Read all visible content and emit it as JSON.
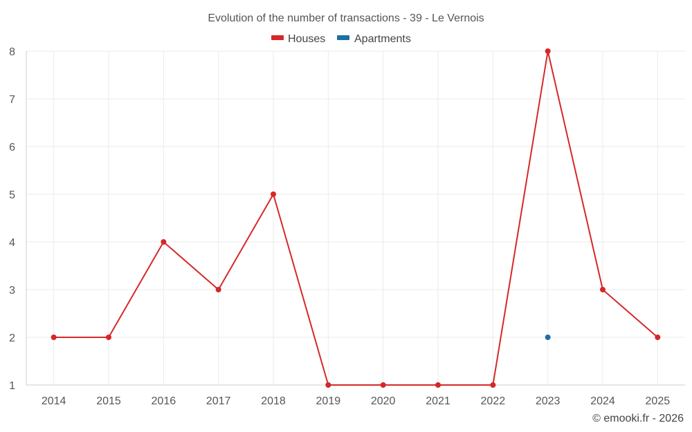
{
  "chart_data": {
    "type": "line",
    "title": "Evolution of the number of transactions - 39 - Le Vernois",
    "x": [
      "2014",
      "2015",
      "2016",
      "2017",
      "2018",
      "2019",
      "2020",
      "2021",
      "2022",
      "2023",
      "2024",
      "2025"
    ],
    "series": [
      {
        "name": "Houses",
        "color": "#d62728",
        "values": [
          2,
          2,
          4,
          3,
          5,
          1,
          1,
          1,
          1,
          8,
          3,
          2
        ]
      },
      {
        "name": "Apartments",
        "color": "#1f6fa3",
        "values": [
          null,
          null,
          null,
          null,
          null,
          null,
          null,
          null,
          null,
          2,
          null,
          null
        ]
      }
    ],
    "ylim": [
      1,
      8
    ],
    "yticks": [
      1,
      2,
      3,
      4,
      5,
      6,
      7,
      8
    ],
    "grid": true,
    "legend_position": "top-center"
  },
  "credit": "© emooki.fr - 2026"
}
